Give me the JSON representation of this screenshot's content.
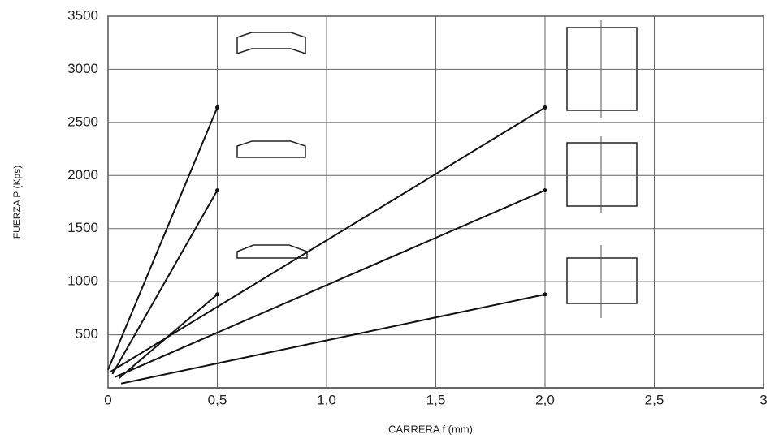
{
  "chart_data": {
    "type": "line",
    "xlabel": "CARRERA f (mm)",
    "ylabel": "FUERZA P (Kps)",
    "xlim": [
      0,
      3
    ],
    "ylim": [
      0,
      3500
    ],
    "xticks": [
      0,
      {
        "value": 0.5,
        "label": "0,5"
      },
      {
        "value": 1,
        "label": "1,0"
      },
      {
        "value": 1.5,
        "label": "1,5"
      },
      {
        "value": 2,
        "label": "2,0"
      },
      {
        "value": 2.5,
        "label": "2,5"
      },
      3
    ],
    "yticks": [
      500,
      1000,
      1500,
      2000,
      2500,
      3000,
      3500
    ],
    "grid": true,
    "series": [
      {
        "x": [
          0,
          0.5
        ],
        "values": [
          170,
          2640
        ],
        "color": "#111111"
      },
      {
        "x": [
          0.02,
          0.5
        ],
        "values": [
          130,
          1860
        ],
        "color": "#111111"
      },
      {
        "x": [
          0.05,
          0.5
        ],
        "values": [
          90,
          880
        ],
        "color": "#111111"
      },
      {
        "x": [
          0.01,
          2
        ],
        "values": [
          150,
          2640
        ],
        "color": "#111111"
      },
      {
        "x": [
          0.03,
          2
        ],
        "values": [
          100,
          1860
        ],
        "color": "#111111"
      },
      {
        "x": [
          0.06,
          2
        ],
        "values": [
          40,
          880
        ],
        "color": "#111111"
      }
    ]
  }
}
